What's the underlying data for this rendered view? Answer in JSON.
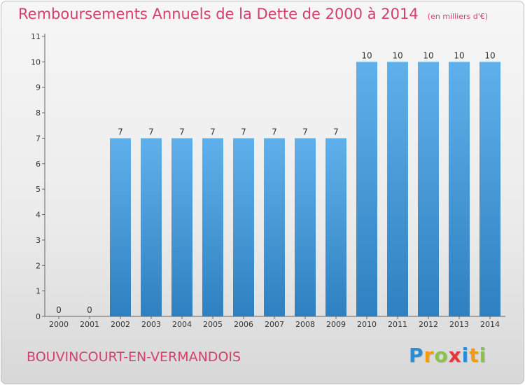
{
  "header": {
    "title": "Remboursements Annuels de la Dette de 2000 à 2014",
    "subtitle": "(en milliers d'€)"
  },
  "footer": {
    "commune": "BOUVINCOURT-EN-VERMANDOIS",
    "logo_letters": [
      "P",
      "r",
      "o",
      "x",
      "i",
      "t",
      "i"
    ],
    "logo_colors": [
      "#2a8dd4",
      "#f39c12",
      "#8bc34a",
      "#e53935",
      "#2a8dd4",
      "#f39c12",
      "#8bc34a"
    ]
  },
  "colors": {
    "bar_light": "#5fb0ea",
    "bar_dark": "#2f80c0",
    "title": "#d4406a"
  },
  "chart_data": {
    "type": "bar",
    "title": "Remboursements Annuels de la Dette de 2000 à 2014",
    "subtitle": "(en milliers d'€)",
    "categories": [
      "2000",
      "2001",
      "2002",
      "2003",
      "2004",
      "2005",
      "2006",
      "2007",
      "2008",
      "2009",
      "2010",
      "2011",
      "2012",
      "2013",
      "2014"
    ],
    "values": [
      0,
      0,
      7,
      7,
      7,
      7,
      7,
      7,
      7,
      7,
      10,
      10,
      10,
      10,
      10
    ],
    "data_labels": [
      "0",
      "0",
      "7",
      "7",
      "7",
      "7",
      "7",
      "7",
      "7",
      "7",
      "10",
      "10",
      "10",
      "10",
      "10"
    ],
    "y_ticks": [
      "0",
      "1",
      "2",
      "3",
      "4",
      "5",
      "6",
      "7",
      "8",
      "9",
      "10",
      "11"
    ],
    "ylim": [
      0,
      11
    ],
    "xlabel": "",
    "ylabel": "",
    "grid": false
  }
}
